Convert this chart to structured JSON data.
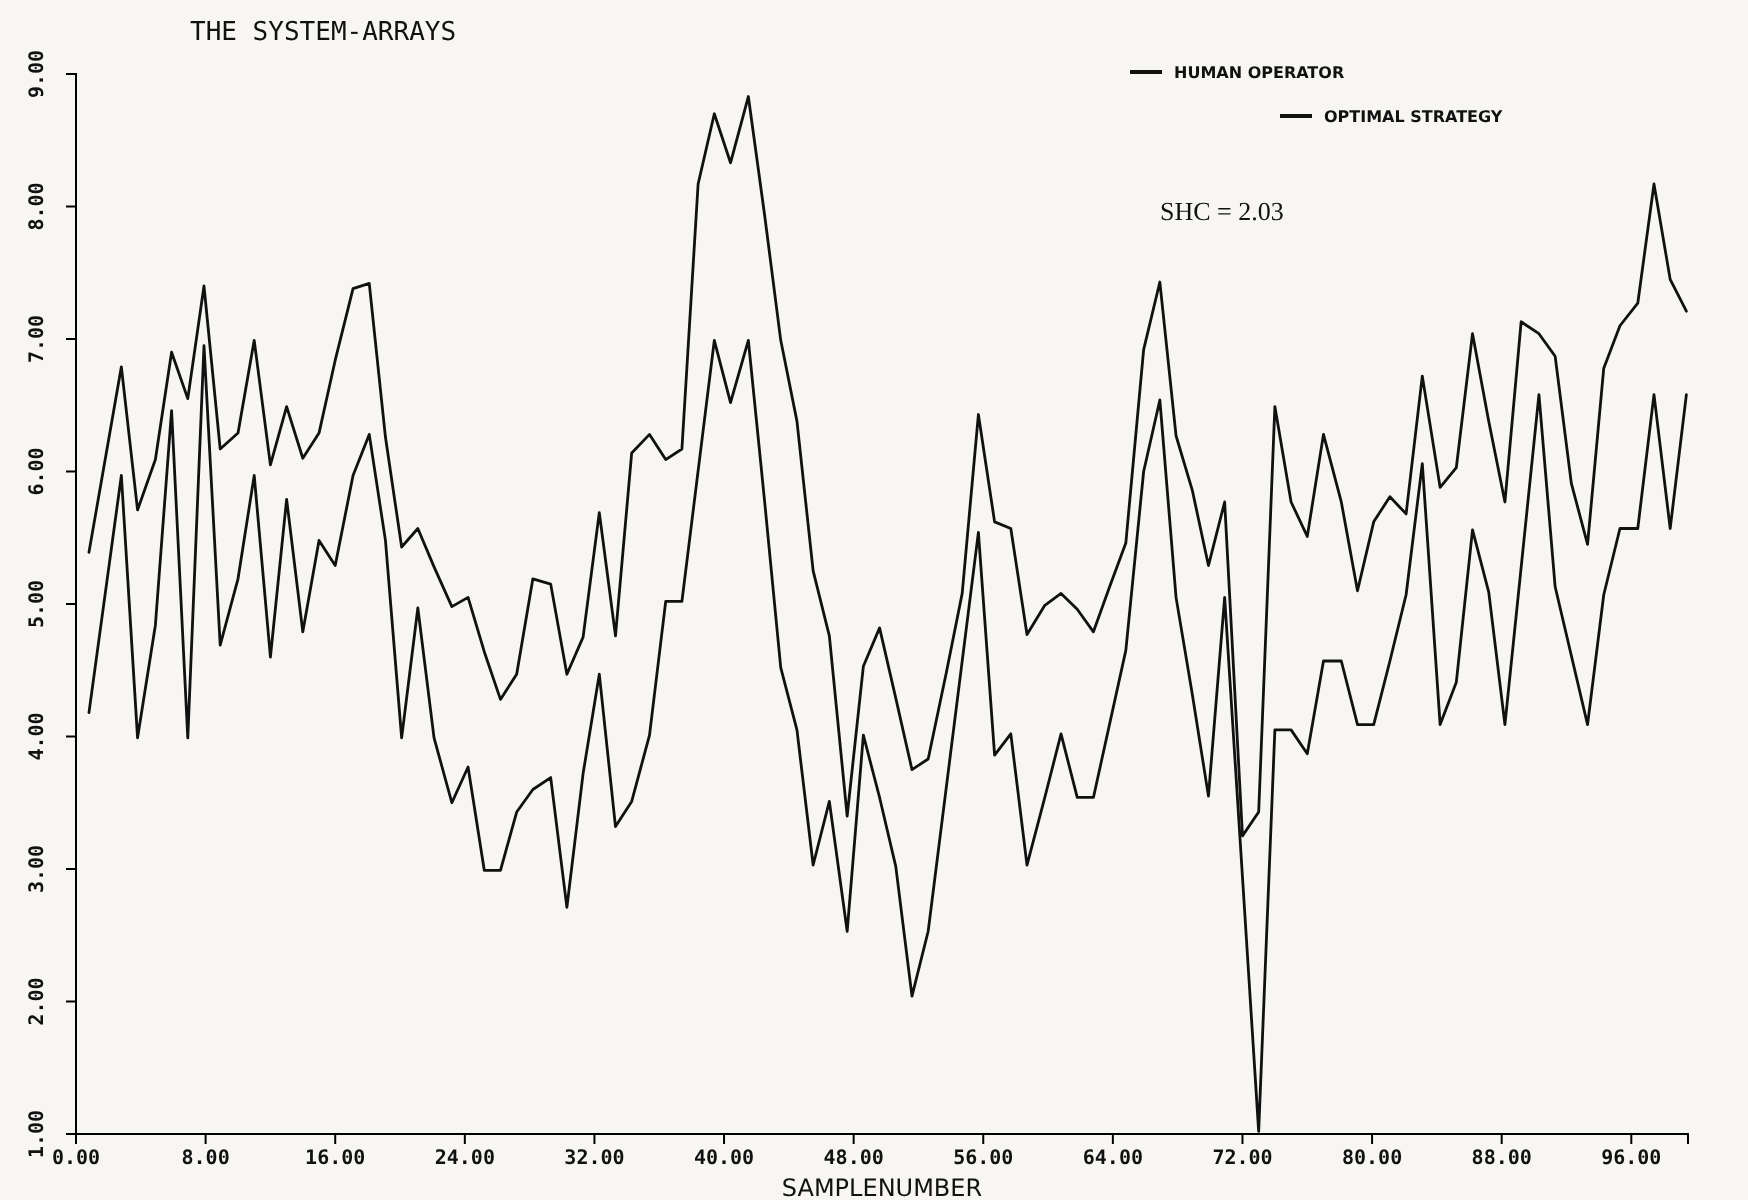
{
  "chart_data": {
    "type": "line",
    "title": "THE SYSTEM-ARRAYS",
    "xlabel": "SAMPLENUMBER",
    "annotations": [
      "SHC = 2.03"
    ],
    "xlim": [
      0,
      99.5
    ],
    "ylim": [
      1,
      9
    ],
    "xticks": [
      {
        "value": 0,
        "label": "0.00"
      },
      {
        "value": 8,
        "label": "8.00"
      },
      {
        "value": 16,
        "label": "16.00"
      },
      {
        "value": 24,
        "label": "24.00"
      },
      {
        "value": 32,
        "label": "32.00"
      },
      {
        "value": 40,
        "label": "40.00"
      },
      {
        "value": 48,
        "label": "48.00"
      },
      {
        "value": 56,
        "label": "56.00"
      },
      {
        "value": 64,
        "label": "64.00"
      },
      {
        "value": 72,
        "label": "72.00"
      },
      {
        "value": 80,
        "label": "80.00"
      },
      {
        "value": 88,
        "label": "88.00"
      },
      {
        "value": 96,
        "label": "96.00"
      }
    ],
    "yticks": [
      {
        "value": 1,
        "label": "1.00"
      },
      {
        "value": 2,
        "label": "2.00"
      },
      {
        "value": 3,
        "label": "3.00"
      },
      {
        "value": 4,
        "label": "4.00"
      },
      {
        "value": 5,
        "label": "5.00"
      },
      {
        "value": 6,
        "label": "6.00"
      },
      {
        "value": 7,
        "label": "7.00"
      },
      {
        "value": 8,
        "label": "8.00"
      },
      {
        "value": 9,
        "label": "9.00"
      }
    ],
    "legend": "top right",
    "grid": false,
    "line_style": "solid",
    "series": [
      {
        "name": "HUMAN OPERATOR",
        "color": "#111111",
        "x": [
          0.8,
          2.8,
          3.8,
          4.9,
          5.9,
          6.9,
          7.9,
          8.9,
          10.0,
          11.0,
          12.0,
          13.0,
          14.0,
          15.0,
          16.0,
          17.1,
          18.1,
          19.1,
          20.1,
          21.1,
          22.1,
          23.2,
          24.2,
          25.2,
          26.2,
          27.2,
          28.2,
          29.3,
          30.3,
          31.3,
          32.3,
          33.3,
          34.3,
          35.4,
          36.4,
          37.4,
          38.4,
          39.4,
          40.4,
          41.5,
          42.5,
          43.5,
          44.5,
          45.5,
          46.5,
          47.6,
          48.6,
          49.6,
          50.6,
          51.6,
          52.6,
          53.7,
          54.7,
          55.7,
          56.7,
          57.7,
          58.7,
          59.8,
          60.8,
          61.8,
          62.8,
          63.8,
          64.8,
          65.9,
          66.9,
          67.9,
          68.9,
          69.9,
          70.9,
          72.0,
          73.0,
          74.0,
          75.0,
          76.0,
          77.0,
          78.1,
          79.1,
          80.1,
          81.1,
          82.1,
          83.1,
          84.2,
          85.2,
          86.2,
          87.2,
          88.2,
          89.2,
          90.3,
          91.3,
          92.3,
          93.3,
          94.3,
          95.3,
          96.4,
          97.4,
          98.4,
          99.4
        ],
        "values": [
          5.39,
          6.79,
          5.71,
          6.09,
          6.9,
          6.55,
          7.4,
          6.17,
          6.29,
          6.99,
          6.05,
          6.49,
          6.1,
          6.29,
          6.84,
          7.38,
          7.42,
          6.26,
          5.43,
          5.57,
          5.28,
          4.98,
          5.05,
          4.64,
          4.28,
          4.47,
          5.19,
          5.15,
          4.47,
          4.75,
          5.69,
          4.76,
          6.14,
          6.28,
          6.09,
          6.17,
          8.17,
          8.7,
          8.33,
          8.83,
          7.94,
          6.99,
          6.38,
          5.25,
          4.76,
          3.4,
          4.53,
          4.82,
          4.29,
          3.75,
          3.83,
          4.47,
          5.08,
          6.43,
          5.62,
          5.57,
          4.77,
          4.99,
          5.08,
          4.96,
          4.79,
          5.13,
          5.46,
          6.92,
          7.43,
          6.27,
          5.86,
          5.29,
          5.77,
          3.25,
          3.43,
          6.49,
          5.77,
          5.51,
          6.28,
          5.77,
          5.1,
          5.62,
          5.81,
          5.68,
          6.72,
          5.88,
          6.03,
          7.04,
          6.38,
          5.77,
          7.13,
          7.04,
          6.87,
          5.91,
          5.45,
          6.78,
          7.1,
          7.27,
          8.17,
          7.45,
          7.21
        ]
      },
      {
        "name": "OPTIMAL STRATEGY",
        "color": "#111111",
        "x": [
          0.8,
          2.8,
          3.8,
          4.9,
          5.9,
          6.9,
          7.9,
          8.9,
          10.0,
          11.0,
          12.0,
          13.0,
          14.0,
          15.0,
          16.0,
          17.1,
          18.1,
          19.1,
          20.1,
          21.1,
          22.1,
          23.2,
          24.2,
          25.2,
          26.2,
          27.2,
          28.2,
          29.3,
          30.3,
          31.3,
          32.3,
          33.3,
          34.3,
          35.4,
          36.4,
          37.4,
          39.4,
          40.4,
          41.5,
          42.5,
          43.5,
          44.5,
          45.5,
          46.5,
          47.6,
          48.6,
          49.6,
          50.6,
          51.6,
          52.6,
          55.7,
          56.7,
          57.7,
          58.7,
          59.8,
          60.8,
          61.8,
          62.8,
          64.8,
          65.9,
          66.9,
          67.9,
          68.9,
          69.9,
          70.9,
          73.0,
          74.0,
          75.0,
          76.0,
          77.0,
          78.1,
          79.1,
          80.1,
          81.1,
          82.1,
          83.1,
          84.2,
          85.2,
          86.2,
          87.2,
          88.2,
          90.3,
          91.3,
          93.3,
          94.3,
          95.3,
          96.4,
          97.4,
          98.4,
          99.4
        ],
        "values": [
          4.18,
          5.97,
          3.99,
          4.84,
          6.46,
          3.99,
          6.95,
          4.69,
          5.19,
          5.97,
          4.6,
          5.79,
          4.79,
          5.48,
          5.29,
          5.97,
          6.28,
          5.48,
          3.99,
          4.97,
          3.99,
          3.5,
          3.77,
          2.99,
          2.99,
          3.43,
          3.6,
          3.69,
          2.71,
          3.72,
          4.47,
          3.32,
          3.51,
          4.01,
          5.02,
          5.02,
          6.99,
          6.52,
          6.99,
          5.78,
          4.52,
          4.05,
          3.03,
          3.51,
          2.53,
          4.01,
          3.54,
          3.02,
          2.04,
          2.53,
          5.54,
          3.86,
          4.02,
          3.03,
          3.54,
          4.02,
          3.54,
          3.54,
          4.65,
          6.0,
          6.54,
          5.05,
          4.32,
          3.55,
          5.05,
          1.02,
          4.05,
          4.05,
          3.87,
          4.57,
          4.57,
          4.09,
          4.09,
          4.57,
          5.07,
          6.06,
          4.09,
          4.41,
          5.56,
          5.09,
          4.09,
          6.58,
          5.13,
          4.09,
          5.07,
          5.57,
          5.57,
          6.58,
          5.57,
          6.58
        ]
      }
    ]
  }
}
